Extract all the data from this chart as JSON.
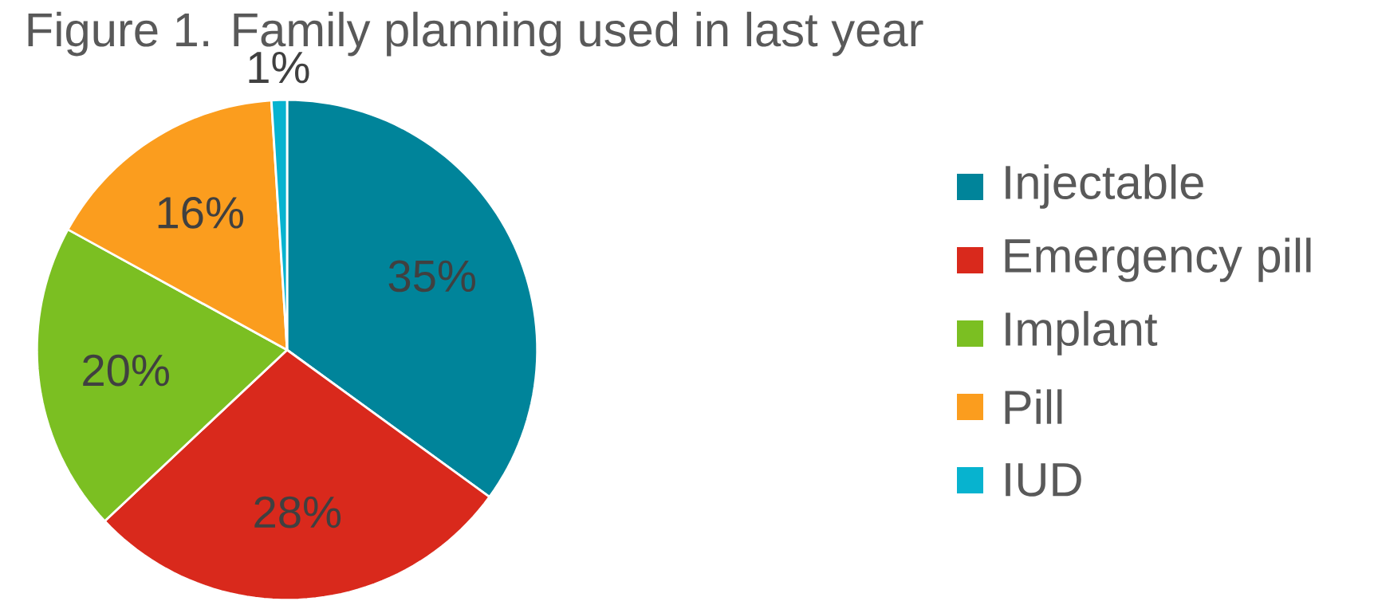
{
  "chart_data": {
    "type": "pie",
    "title": "Figure 1. Family planning used in last year",
    "categories": [
      "Injectable",
      "Emergency pill",
      "Implant",
      "Pill",
      "IUD"
    ],
    "values": [
      35,
      28,
      20,
      16,
      1
    ],
    "value_labels": [
      "35%",
      "28%",
      "20%",
      "16%",
      "1%"
    ],
    "colors": [
      "#00849a",
      "#d9291c",
      "#7bbf22",
      "#fb9d1e",
      "#07b3cf"
    ],
    "legend": "right"
  }
}
